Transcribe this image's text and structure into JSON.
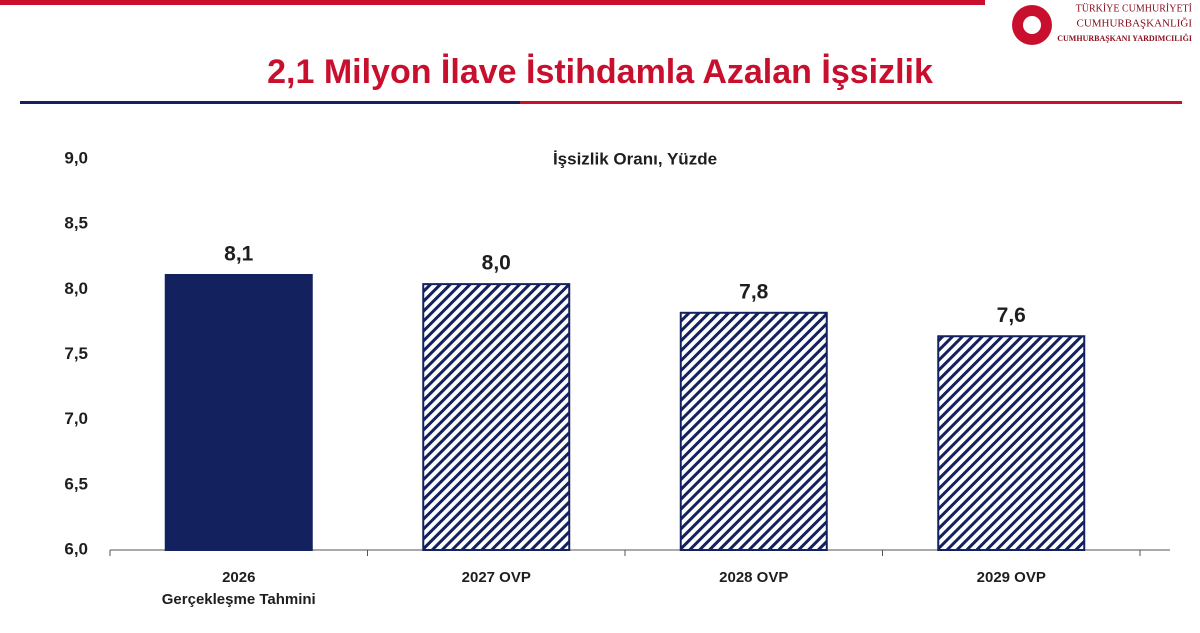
{
  "header": {
    "logo_lines": [
      "TÜRKİYE CUMHURİYETİ",
      "CUMHURBAŞKANLIĞI",
      "CUMHURBAŞKANI YARDIMCILIĞI"
    ]
  },
  "chart_data": {
    "type": "bar",
    "title": "2,1 Milyon İlave İstihdamla Azalan İşsizlik",
    "subtitle": "İşsizlik Oranı, Yüzde",
    "categories": [
      "2026\nGerçekleşme Tahmini",
      "2027 OVP",
      "2028 OVP",
      "2029 OVP"
    ],
    "values": [
      8.11,
      8.04,
      7.82,
      7.64
    ],
    "value_labels": [
      "8,1",
      "8,0",
      "7,8",
      "7,6"
    ],
    "color": "#13215e",
    "bar_styles": [
      "solid",
      "hatched",
      "hatched",
      "hatched"
    ],
    "ylim": [
      6,
      9
    ],
    "yticks": [
      {
        "value": 6,
        "label": "6,0"
      },
      {
        "value": 6.5,
        "label": "6,5"
      },
      {
        "value": 7,
        "label": "7,0"
      },
      {
        "value": 7.5,
        "label": "7,5"
      },
      {
        "value": 8,
        "label": "8,0"
      },
      {
        "value": 8.5,
        "label": "8,5"
      },
      {
        "value": 9,
        "label": "9,0"
      }
    ],
    "grid": false
  }
}
